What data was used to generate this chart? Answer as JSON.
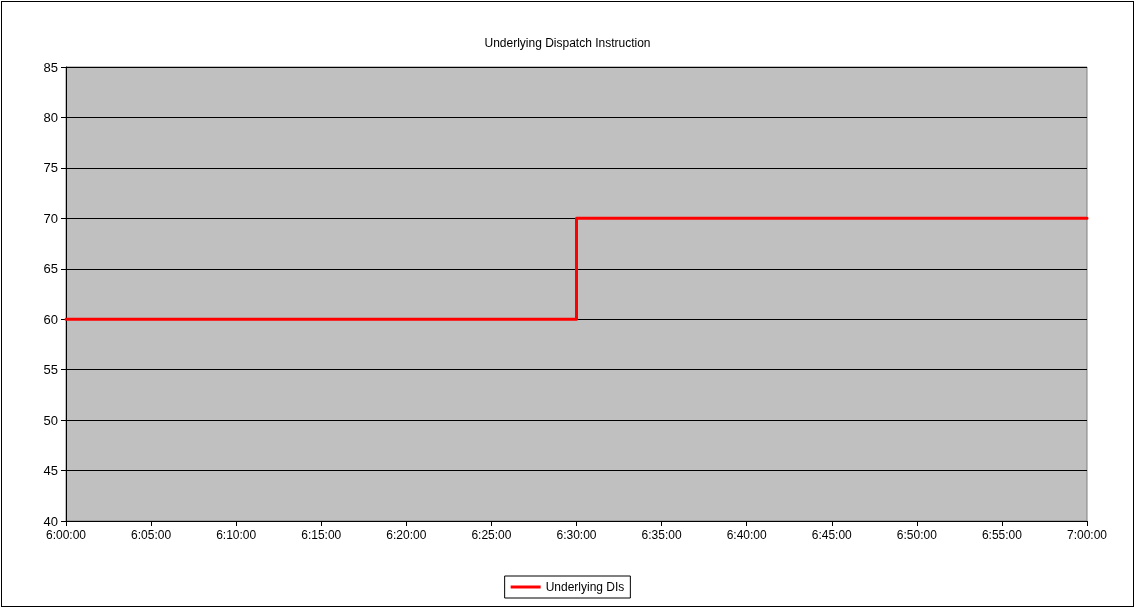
{
  "chart_data": {
    "type": "line",
    "title": "Underlying Dispatch Instruction",
    "x": [
      6,
      6.5,
      6.5,
      7
    ],
    "series": [
      {
        "name": "Underlying DIs",
        "color": "#ff0000",
        "values": [
          60,
          60,
          70,
          70
        ]
      }
    ],
    "xlim": [
      6,
      7
    ],
    "xticks": [
      {
        "value": 6,
        "label": "6:00:00"
      },
      {
        "value": 6.083333,
        "label": "6:05:00"
      },
      {
        "value": 6.166667,
        "label": "6:10:00"
      },
      {
        "value": 6.25,
        "label": "6:15:00"
      },
      {
        "value": 6.333333,
        "label": "6:20:00"
      },
      {
        "value": 6.416667,
        "label": "6:25:00"
      },
      {
        "value": 6.5,
        "label": "6:30:00"
      },
      {
        "value": 6.583333,
        "label": "6:35:00"
      },
      {
        "value": 6.666667,
        "label": "6:40:00"
      },
      {
        "value": 6.75,
        "label": "6:45:00"
      },
      {
        "value": 6.833333,
        "label": "6:50:00"
      },
      {
        "value": 6.916667,
        "label": "6:55:00"
      },
      {
        "value": 7,
        "label": "7:00:00"
      }
    ],
    "ylim": [
      40,
      85
    ],
    "yticks": [
      40,
      45,
      50,
      55,
      60,
      65,
      70,
      75,
      80,
      85
    ],
    "grid": "y",
    "legend": "bottom",
    "marker": "none",
    "line_style": "solid"
  }
}
